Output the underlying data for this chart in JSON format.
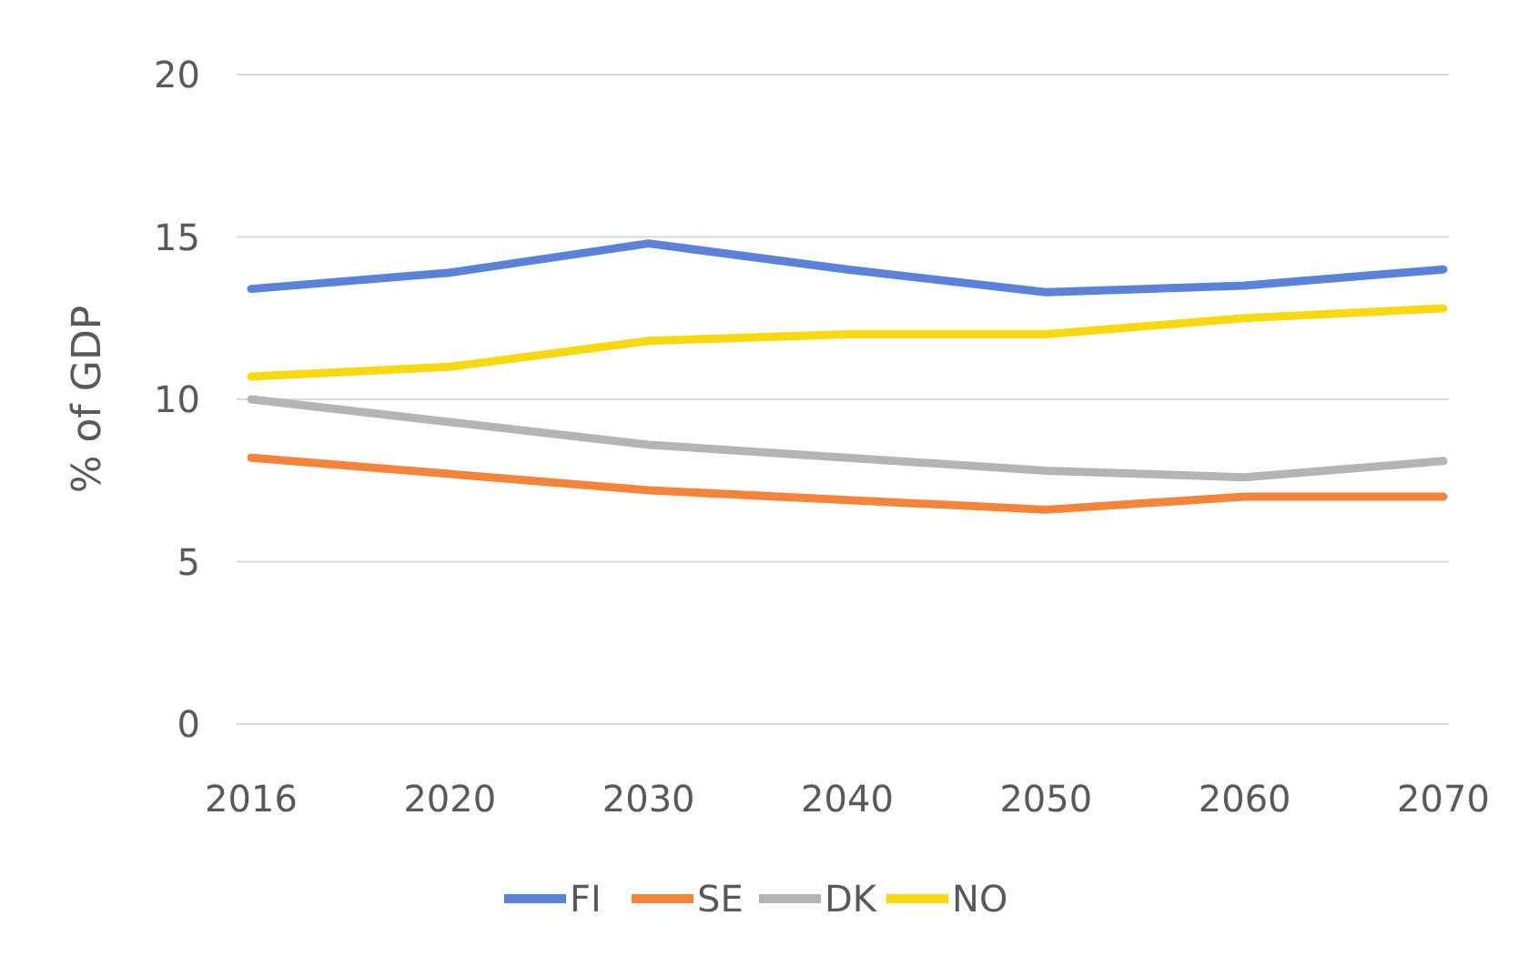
{
  "chart_data": {
    "type": "line",
    "ylabel": "% of GDP",
    "categories": [
      "2016",
      "2020",
      "2030",
      "2040",
      "2050",
      "2060",
      "2070"
    ],
    "series": [
      {
        "name": "FI",
        "color": "#5b82d9",
        "values": [
          13.4,
          13.9,
          14.8,
          14.0,
          13.3,
          13.5,
          14.0
        ]
      },
      {
        "name": "SE",
        "color": "#f5843a",
        "values": [
          8.2,
          7.7,
          7.2,
          6.9,
          6.6,
          7.0,
          7.0
        ]
      },
      {
        "name": "DK",
        "color": "#b4b4b4",
        "values": [
          10.0,
          9.3,
          8.6,
          8.2,
          7.8,
          7.6,
          8.1
        ]
      },
      {
        "name": "NO",
        "color": "#f7d90f",
        "values": [
          10.7,
          11.0,
          11.8,
          12.0,
          12.0,
          12.5,
          12.8
        ]
      }
    ],
    "ylim": [
      0,
      20
    ],
    "yticks": [
      0,
      5,
      10,
      15,
      20
    ],
    "grid": "y",
    "legend": "bottom",
    "marker": "none",
    "line_style": "solid"
  }
}
